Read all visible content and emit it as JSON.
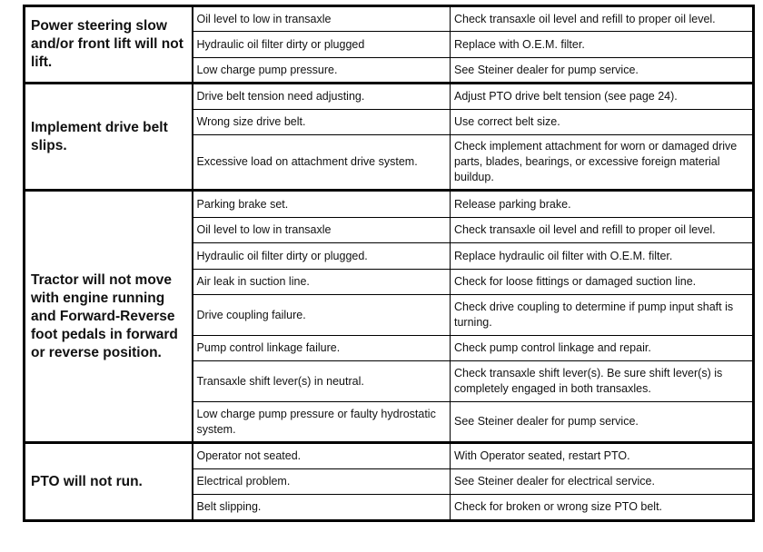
{
  "table": {
    "groups": [
      {
        "problem": "Power steering slow and/or front lift will not lift.",
        "rows": [
          [
            "Oil level to low in transaxle",
            "Check transaxle oil level and refill to proper oil level."
          ],
          [
            "Hydraulic oil filter dirty or plugged",
            "Replace with O.E.M. filter."
          ],
          [
            "Low charge pump pressure.",
            "See Steiner dealer for pump service."
          ]
        ]
      },
      {
        "problem": "Implement drive belt slips.",
        "rows": [
          [
            "Drive belt tension need adjusting.",
            "Adjust PTO drive belt tension (see page 24)."
          ],
          [
            "Wrong size drive belt.",
            "Use correct belt size."
          ],
          [
            "Excessive load on attachment drive system.",
            "Check implement attachment for worn or damaged drive parts, blades, bearings, or excessive foreign material buildup."
          ]
        ]
      },
      {
        "problem": "Tractor will not move with engine running and Forward-Reverse foot pedals in forward or reverse position.",
        "rows": [
          [
            "Parking brake set.",
            "Release parking brake."
          ],
          [
            "Oil level to low in transaxle",
            "Check transaxle oil level and refill to proper oil level."
          ],
          [
            "Hydraulic oil filter dirty or plugged.",
            "Replace hydraulic oil filter with O.E.M. filter."
          ],
          [
            "Air leak in suction line.",
            "Check for loose fittings or damaged suction line."
          ],
          [
            "Drive coupling failure.",
            "Check drive coupling to determine if pump input shaft is turning."
          ],
          [
            "Pump control linkage failure.",
            "Check pump control linkage and repair."
          ],
          [
            "Transaxle shift lever(s) in neutral.",
            "Check transaxle shift lever(s). Be sure shift lever(s) is completely engaged in both transaxles."
          ],
          [
            "Low charge pump pressure or faulty hydrostatic system.",
            "See Steiner dealer for pump service."
          ]
        ]
      },
      {
        "problem": "PTO will not run.",
        "rows": [
          [
            "Operator not seated.",
            "With Operator seated, restart PTO."
          ],
          [
            "Electrical problem.",
            "See Steiner dealer for electrical service."
          ],
          [
            "Belt slipping.",
            "Check for broken or wrong size PTO belt."
          ]
        ]
      }
    ]
  }
}
